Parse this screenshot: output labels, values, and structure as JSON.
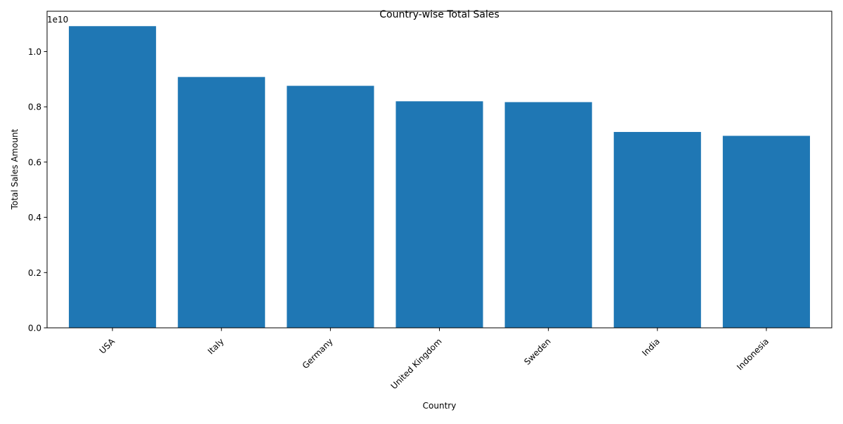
{
  "chart_data": {
    "type": "bar",
    "title": "Country-wise Total Sales",
    "xlabel": "Country",
    "ylabel": "Total Sales Amount",
    "offset_text": "1e10",
    "categories": [
      "USA",
      "Italy",
      "Germany",
      "United Kingdom",
      "Sweden",
      "India",
      "Indonesia"
    ],
    "values": [
      10.92,
      9.08,
      8.76,
      8.2,
      8.17,
      7.09,
      6.95
    ],
    "ylim": [
      0,
      11.46
    ],
    "yticks": [
      0.0,
      0.2,
      0.4,
      0.6,
      0.8,
      1.0
    ],
    "ytick_labels": [
      "0.0",
      "0.2",
      "0.4",
      "0.6",
      "0.8",
      "1.0"
    ],
    "grid": false,
    "legend": "none",
    "bar_color": "#1f77b4",
    "value_unit_note": "values are in units of the axis multiplier (1e9 shown as fraction of 1e10 ticks)"
  }
}
